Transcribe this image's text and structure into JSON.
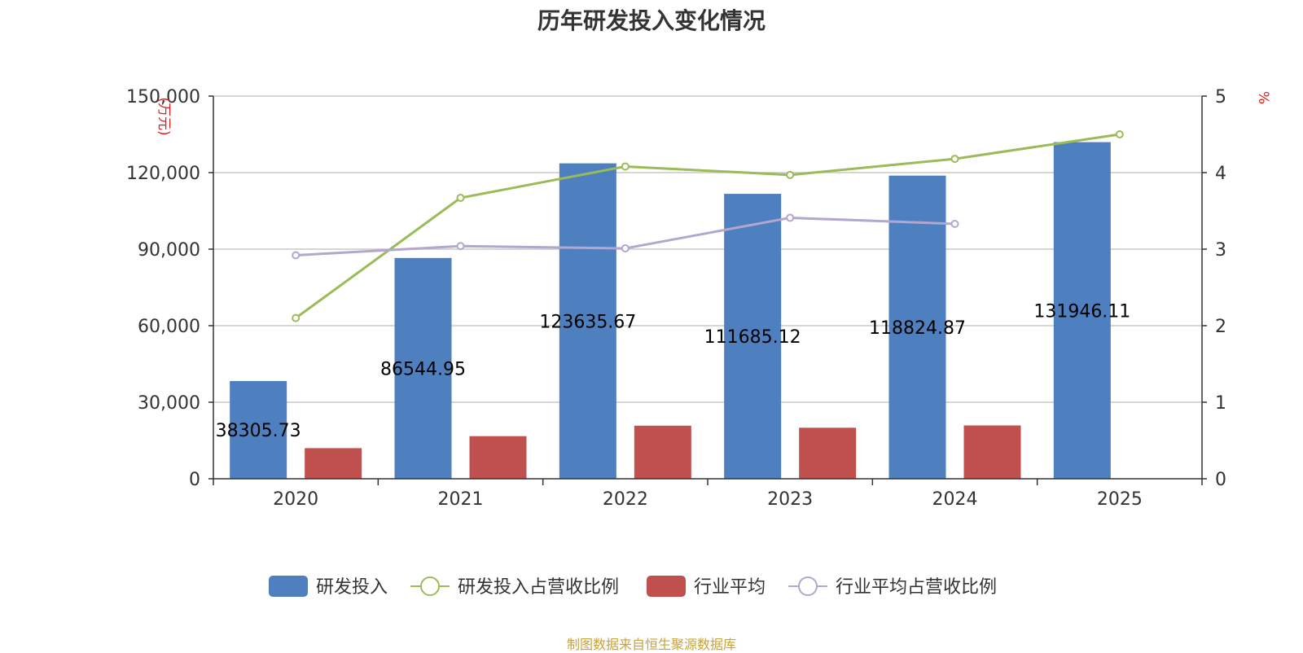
{
  "title": "历年研发投入变化情况",
  "source": "制图数据来自恒生聚源数据库",
  "chart_data": {
    "type": "bar",
    "categories": [
      "2020",
      "2021",
      "2022",
      "2023",
      "2024",
      "2025"
    ],
    "y_left": {
      "label": "(万元)",
      "ylim": [
        0,
        150000
      ],
      "ticks": [
        0,
        30000,
        60000,
        90000,
        120000,
        150000
      ],
      "tick_labels": [
        "0",
        "30,000",
        "60,000",
        "90,000",
        "120,000",
        "150,000"
      ]
    },
    "y_right": {
      "label": "%",
      "ylim": [
        0,
        5
      ],
      "ticks": [
        0,
        1,
        2,
        3,
        4,
        5
      ],
      "tick_labels": [
        "0",
        "1",
        "2",
        "3",
        "4",
        "5"
      ]
    },
    "grid": true,
    "legend_position": "bottom",
    "series": [
      {
        "name": "研发投入",
        "type": "bar",
        "axis": "left",
        "color": "#4e7fbf",
        "values": [
          38305.73,
          86544.95,
          123635.67,
          111685.12,
          118824.87,
          131946.11
        ],
        "labels": [
          "38305.73",
          "86544.95",
          "123635.67",
          "111685.12",
          "118824.87",
          "131946.11"
        ]
      },
      {
        "name": "研发投入占营收比例",
        "type": "line",
        "axis": "right",
        "color": "#9bbb59",
        "values": [
          2.1,
          3.67,
          4.08,
          3.97,
          4.18,
          4.5
        ]
      },
      {
        "name": "行业平均",
        "type": "bar",
        "axis": "left",
        "color": "#c0504d",
        "values": [
          12000,
          16700,
          20800,
          20000,
          20900,
          null
        ]
      },
      {
        "name": "行业平均占营收比例",
        "type": "line",
        "axis": "right",
        "color": "#b3a6cf",
        "values": [
          2.92,
          3.04,
          3.01,
          3.41,
          3.33,
          null
        ]
      }
    ]
  }
}
